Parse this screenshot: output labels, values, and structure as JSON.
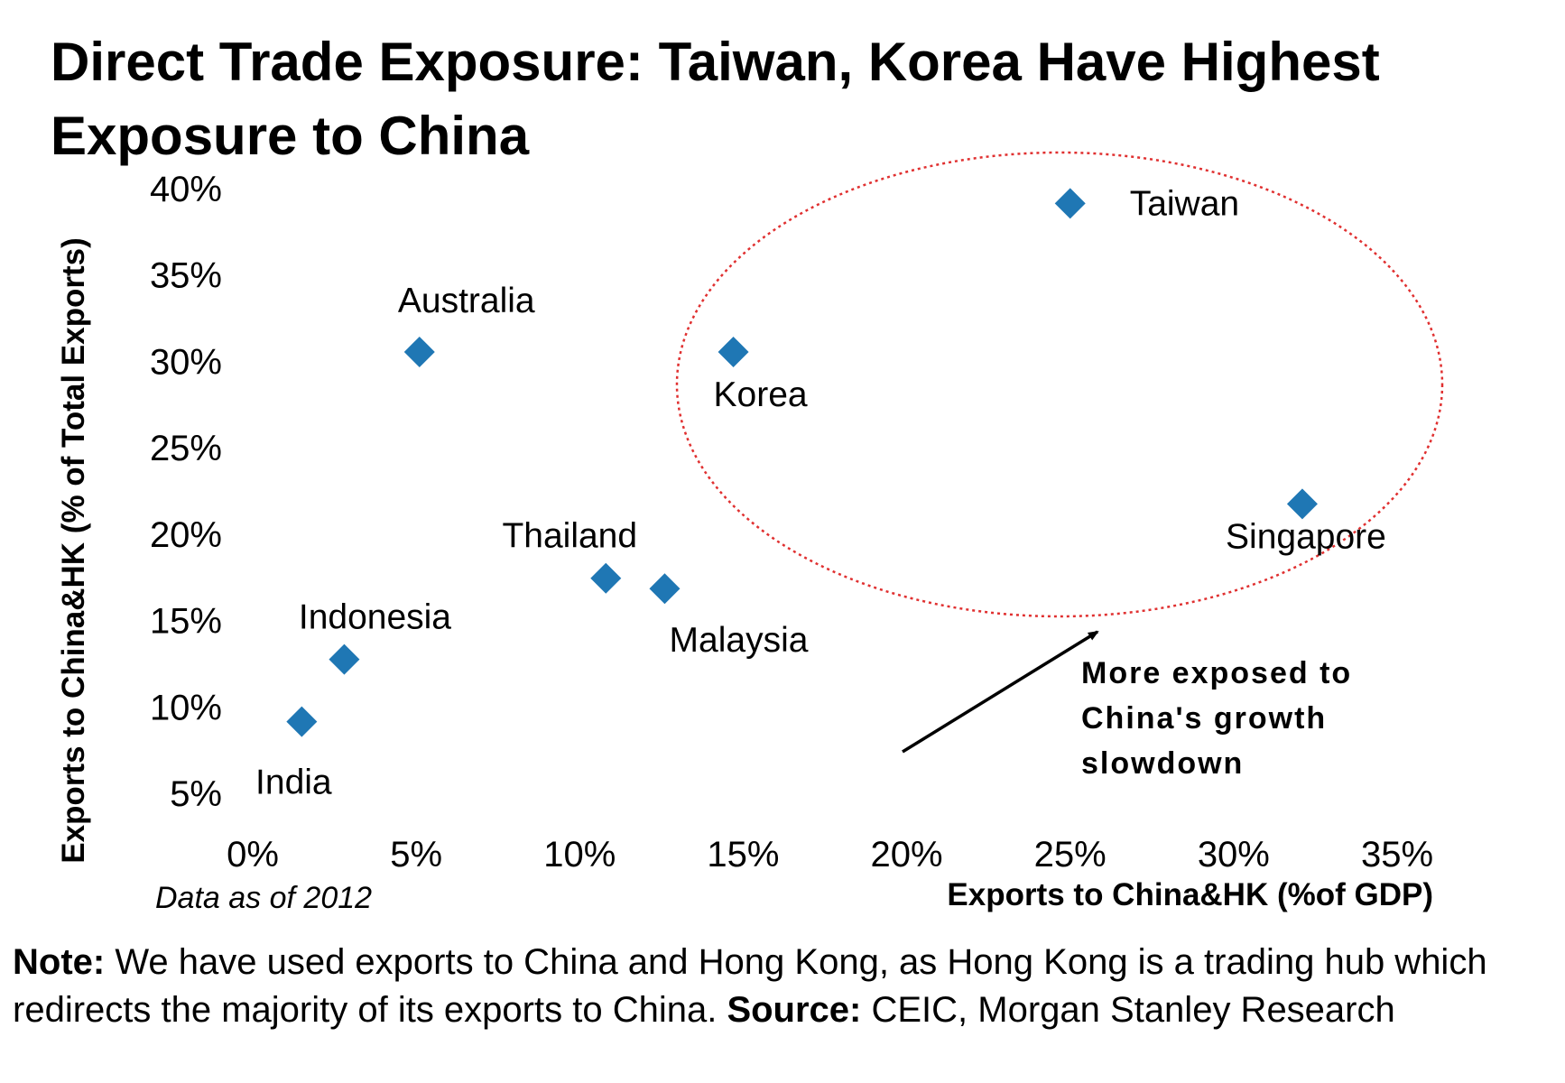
{
  "title": "Direct Trade Exposure: Taiwan, Korea Have Highest Exposure to China",
  "chart_data": {
    "type": "scatter",
    "title": "Direct Trade Exposure: Taiwan, Korea Have Highest Exposure to China",
    "xlabel": "Exports to China&HK (%of GDP)",
    "ylabel": "Exports to China&HK (% of Total Exports)",
    "xlim": [
      0,
      35
    ],
    "ylim": [
      5,
      40
    ],
    "x_ticks": [
      "0%",
      "5%",
      "10%",
      "15%",
      "20%",
      "25%",
      "30%",
      "35%"
    ],
    "y_ticks": [
      "5%",
      "10%",
      "15%",
      "20%",
      "25%",
      "30%",
      "35%",
      "40%"
    ],
    "grid": false,
    "marker": "diamond",
    "marker_color": "#1f77b4",
    "points": [
      {
        "label": "Taiwan",
        "x": 25.0,
        "y": 39.2
      },
      {
        "label": "Australia",
        "x": 5.1,
        "y": 30.6
      },
      {
        "label": "Korea",
        "x": 14.7,
        "y": 30.6
      },
      {
        "label": "Singapore",
        "x": 32.1,
        "y": 21.8
      },
      {
        "label": "Thailand",
        "x": 10.8,
        "y": 17.5
      },
      {
        "label": "Malaysia",
        "x": 12.6,
        "y": 16.9
      },
      {
        "label": "Indonesia",
        "x": 2.8,
        "y": 12.8
      },
      {
        "label": "India",
        "x": 1.5,
        "y": 9.2
      }
    ],
    "annotation": {
      "text_lines": [
        "More exposed to",
        "China's growth",
        "slowdown"
      ],
      "highlight_color": "#e03030"
    },
    "footnote": "Data as of 2012"
  },
  "note": {
    "note_label": "Note:",
    "note_text": " We have used exports to China and Hong Kong, as Hong Kong is a trading hub which redirects the majority of its exports to China. ",
    "source_label": "Source:",
    "source_text": " CEIC, Morgan Stanley Research"
  }
}
